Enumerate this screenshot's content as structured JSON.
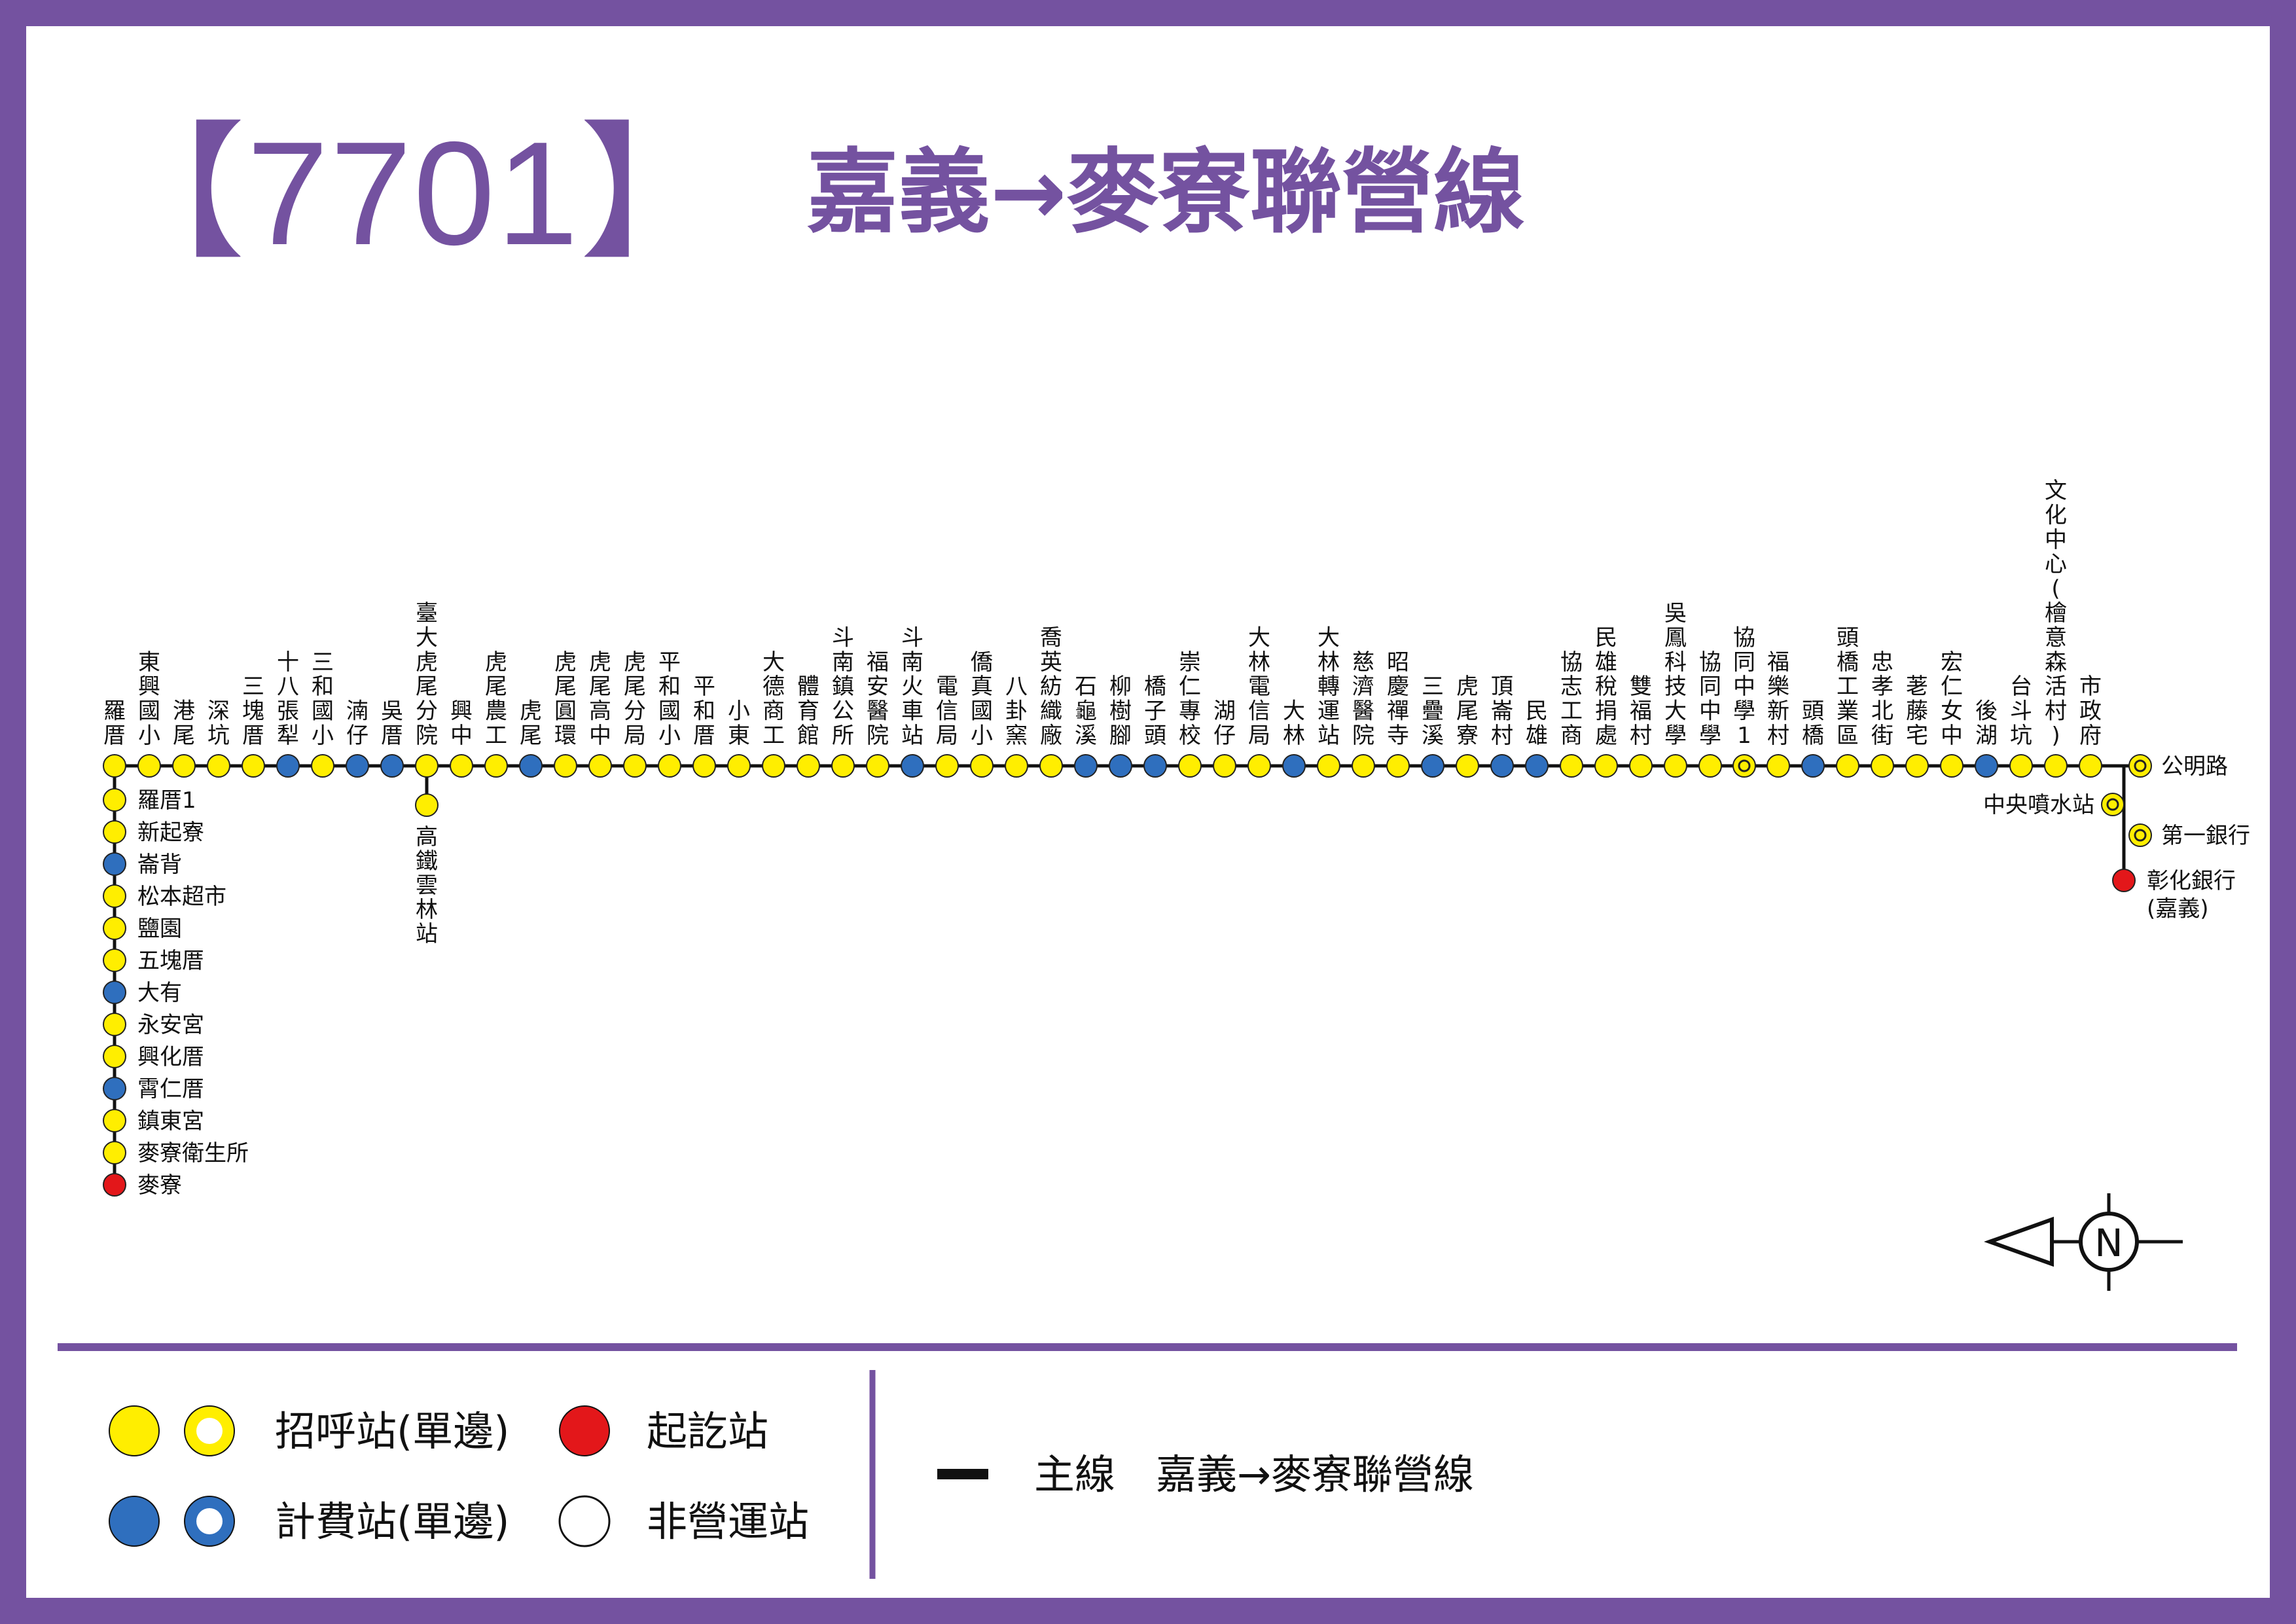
{
  "route": {
    "number": "【7701】",
    "name": "嘉義→麥寮聯營線"
  },
  "colors": {
    "frame": "#7452a0",
    "hail_stop": "#ffee00",
    "fare_stop": "#2f6fbe",
    "terminal": "#e3171a",
    "line": "#111111"
  },
  "main_line": [
    {
      "name": "羅厝",
      "type": "hail"
    },
    {
      "name": "東興國小",
      "type": "hail"
    },
    {
      "name": "港尾",
      "type": "hail"
    },
    {
      "name": "深坑",
      "type": "hail"
    },
    {
      "name": "三塊厝",
      "type": "hail"
    },
    {
      "name": "十八張犁",
      "type": "fare"
    },
    {
      "name": "三和國小",
      "type": "hail"
    },
    {
      "name": "湳仔",
      "type": "fare"
    },
    {
      "name": "吳厝",
      "type": "fare"
    },
    {
      "name": "臺大虎尾分院",
      "type": "hail"
    },
    {
      "name": "興中",
      "type": "hail"
    },
    {
      "name": "虎尾農工",
      "type": "hail"
    },
    {
      "name": "虎尾",
      "type": "fare"
    },
    {
      "name": "虎尾圓環",
      "type": "hail"
    },
    {
      "name": "虎尾高中",
      "type": "hail"
    },
    {
      "name": "虎尾分局",
      "type": "hail"
    },
    {
      "name": "平和國小",
      "type": "hail"
    },
    {
      "name": "平和厝",
      "type": "hail"
    },
    {
      "name": "小東",
      "type": "hail"
    },
    {
      "name": "大德商工",
      "type": "hail"
    },
    {
      "name": "體育館",
      "type": "hail"
    },
    {
      "name": "斗南鎮公所",
      "type": "hail"
    },
    {
      "name": "福安醫院",
      "type": "hail"
    },
    {
      "name": "斗南火車站",
      "type": "fare"
    },
    {
      "name": "電信局",
      "type": "hail"
    },
    {
      "name": "僑真國小",
      "type": "hail"
    },
    {
      "name": "八卦窯",
      "type": "hail"
    },
    {
      "name": "喬英紡織廠",
      "type": "hail"
    },
    {
      "name": "石龜溪",
      "type": "fare"
    },
    {
      "name": "柳樹腳",
      "type": "fare"
    },
    {
      "name": "橋子頭",
      "type": "fare"
    },
    {
      "name": "崇仁專校",
      "type": "hail"
    },
    {
      "name": "湖仔",
      "type": "hail"
    },
    {
      "name": "大林電信局",
      "type": "hail"
    },
    {
      "name": "大林",
      "type": "fare"
    },
    {
      "name": "大林轉運站",
      "type": "hail"
    },
    {
      "name": "慈濟醫院",
      "type": "hail"
    },
    {
      "name": "昭慶禪寺",
      "type": "hail"
    },
    {
      "name": "三疊溪",
      "type": "fare"
    },
    {
      "name": "虎尾寮",
      "type": "hail"
    },
    {
      "name": "頂崙村",
      "type": "fare"
    },
    {
      "name": "民雄",
      "type": "fare"
    },
    {
      "name": "協志工商",
      "type": "hail"
    },
    {
      "name": "民雄稅捐處",
      "type": "hail"
    },
    {
      "name": "雙福村",
      "type": "hail"
    },
    {
      "name": "吳鳳科技大學",
      "type": "hail"
    },
    {
      "name": "協同中學",
      "type": "hail"
    },
    {
      "name": "協同中學1",
      "type": "hail-ring"
    },
    {
      "name": "福樂新村",
      "type": "hail"
    },
    {
      "name": "頭橋",
      "type": "fare"
    },
    {
      "name": "頭橋工業區",
      "type": "hail"
    },
    {
      "name": "忠孝北街",
      "type": "hail"
    },
    {
      "name": "荖藤宅",
      "type": "hail"
    },
    {
      "name": "宏仁女中",
      "type": "hail"
    },
    {
      "name": "後湖",
      "type": "fare"
    },
    {
      "name": "台斗坑",
      "type": "hail"
    },
    {
      "name": "文化中心(檜意森活村)",
      "type": "hail"
    },
    {
      "name": "市政府",
      "type": "hail"
    }
  ],
  "branch_kaotie": [
    {
      "name": "高鐵雲林站",
      "type": "hail"
    }
  ],
  "branch_maliao": [
    {
      "name": "羅厝1",
      "type": "hail"
    },
    {
      "name": "新起寮",
      "type": "hail"
    },
    {
      "name": "崙背",
      "type": "fare"
    },
    {
      "name": "松本超市",
      "type": "hail"
    },
    {
      "name": "鹽園",
      "type": "hail"
    },
    {
      "name": "五塊厝",
      "type": "hail"
    },
    {
      "name": "大有",
      "type": "fare"
    },
    {
      "name": "永安宮",
      "type": "hail"
    },
    {
      "name": "興化厝",
      "type": "hail"
    },
    {
      "name": "霄仁厝",
      "type": "fare"
    },
    {
      "name": "鎮東宮",
      "type": "hail"
    },
    {
      "name": "麥寮衛生所",
      "type": "hail"
    },
    {
      "name": "麥寮",
      "type": "terminal"
    }
  ],
  "branch_chiayi": [
    {
      "name": "公明路",
      "type": "hail-ring"
    },
    {
      "name": "中央噴水站",
      "type": "hail-ring"
    },
    {
      "name": "第一銀行",
      "type": "hail-ring"
    },
    {
      "name": "彰化銀行\n(嘉義)",
      "type": "terminal"
    }
  ],
  "compass": {
    "label": "N"
  },
  "legend": {
    "hail": "招呼站(單邊)",
    "fare": "計費站(單邊)",
    "terminal": "起訖站",
    "non_operating": "非營運站",
    "line_label": "主線　嘉義→麥寮聯營線"
  }
}
